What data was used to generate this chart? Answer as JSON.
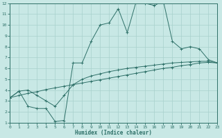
{
  "xlabel": "Humidex (Indice chaleur)",
  "bg_color": "#c8e8e5",
  "grid_color": "#a8d0cc",
  "line_color": "#2e7068",
  "xlim": [
    0,
    23
  ],
  "ylim": [
    1,
    12
  ],
  "line1_x": [
    0,
    1,
    2,
    3,
    4,
    5,
    6,
    7,
    8,
    9,
    10,
    11,
    12,
    13,
    14,
    15,
    16,
    17,
    18,
    19,
    20,
    21,
    22,
    23
  ],
  "line1_y": [
    3.3,
    3.5,
    3.7,
    3.85,
    4.05,
    4.2,
    4.35,
    4.5,
    4.65,
    4.8,
    4.95,
    5.1,
    5.25,
    5.4,
    5.55,
    5.7,
    5.85,
    6.0,
    6.1,
    6.25,
    6.35,
    6.5,
    6.55,
    6.5
  ],
  "line2_x": [
    0,
    1,
    2,
    3,
    4,
    5,
    6,
    7,
    8,
    9,
    10,
    11,
    12,
    13,
    14,
    15,
    16,
    17,
    18,
    19,
    20,
    21,
    22,
    23
  ],
  "line2_y": [
    3.3,
    3.9,
    4.0,
    3.5,
    3.0,
    2.5,
    3.5,
    4.5,
    5.0,
    5.3,
    5.5,
    5.7,
    5.85,
    6.0,
    6.1,
    6.2,
    6.3,
    6.4,
    6.5,
    6.55,
    6.6,
    6.65,
    6.65,
    6.5
  ],
  "line3_x": [
    0,
    1,
    2,
    3,
    4,
    5,
    6,
    7,
    8,
    9,
    10,
    11,
    12,
    13,
    14,
    15,
    16,
    17,
    18,
    19,
    20,
    21,
    22,
    23
  ],
  "line3_y": [
    3.3,
    3.9,
    2.5,
    2.3,
    2.3,
    1.1,
    1.2,
    6.5,
    6.5,
    8.5,
    10.0,
    10.2,
    11.5,
    9.3,
    12.2,
    12.0,
    11.8,
    12.2,
    8.5,
    7.8,
    8.0,
    7.8,
    6.8,
    6.5
  ]
}
